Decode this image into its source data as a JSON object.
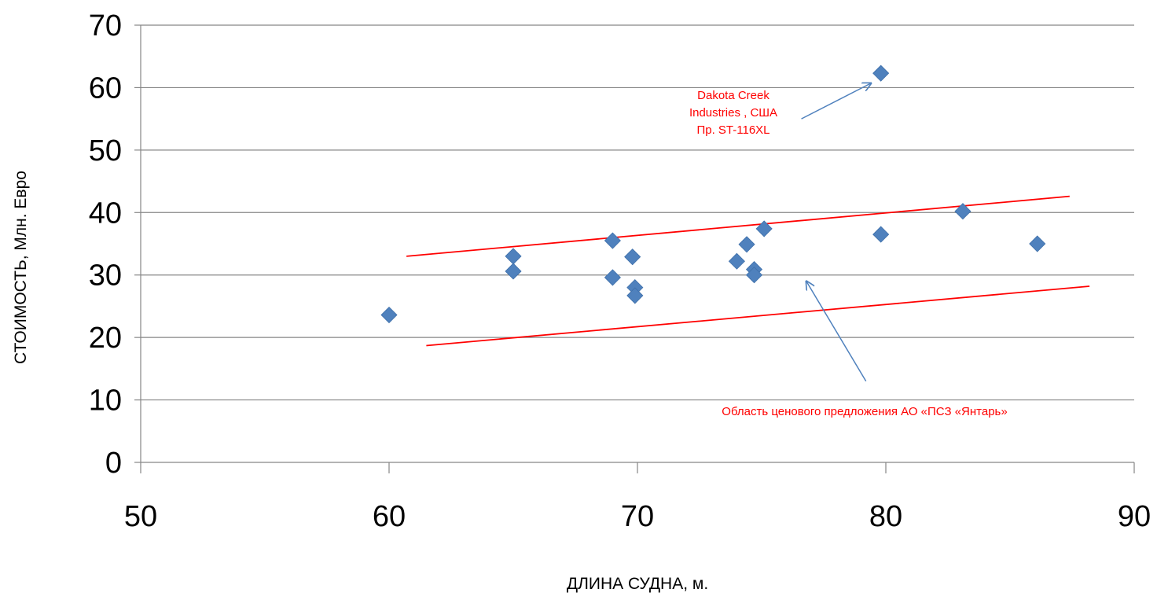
{
  "chart_data": {
    "type": "scatter",
    "title": "",
    "xlabel": "ДЛИНА СУДНА, м.",
    "ylabel": "СТОИМОСТЬ, Млн. Евро",
    "xlim": [
      50,
      90
    ],
    "ylim": [
      0,
      70
    ],
    "x_ticks": [
      50,
      60,
      70,
      80,
      90
    ],
    "y_ticks": [
      0,
      10,
      20,
      30,
      40,
      50,
      60,
      70
    ],
    "grid": "horizontal",
    "colors": {
      "marker": "#4F81BD",
      "band_line": "#FF0000",
      "annotation_text": "#FF0000",
      "arrow": "#4F81BD",
      "grid": "#868686",
      "axis": "#868686"
    },
    "points": [
      {
        "x": 60,
        "y": 23.6
      },
      {
        "x": 65,
        "y": 33.0
      },
      {
        "x": 65,
        "y": 30.6
      },
      {
        "x": 69,
        "y": 35.5
      },
      {
        "x": 69,
        "y": 29.6
      },
      {
        "x": 69.8,
        "y": 32.9
      },
      {
        "x": 69.9,
        "y": 28.0
      },
      {
        "x": 69.9,
        "y": 26.7
      },
      {
        "x": 74,
        "y": 32.2
      },
      {
        "x": 74.4,
        "y": 34.9
      },
      {
        "x": 74.7,
        "y": 30.9
      },
      {
        "x": 74.7,
        "y": 30.0
      },
      {
        "x": 75.1,
        "y": 37.4
      },
      {
        "x": 79.8,
        "y": 62.3
      },
      {
        "x": 79.8,
        "y": 36.5
      },
      {
        "x": 83.1,
        "y": 40.2
      },
      {
        "x": 86.1,
        "y": 35.0
      }
    ],
    "band_lines": [
      {
        "x1": 60.7,
        "y1": 33.0,
        "x2": 87.4,
        "y2": 42.6
      },
      {
        "x1": 61.5,
        "y1": 18.7,
        "x2": 88.2,
        "y2": 28.2
      }
    ],
    "annotations": [
      {
        "lines": [
          "Dakota Creek",
          "Industries , США",
          "Пр. ST-116XL"
        ],
        "arrow_from": {
          "x": 76.6,
          "y": 55.0
        },
        "arrow_to": {
          "x": 79.4,
          "y": 60.7
        }
      },
      {
        "lines": [
          "Область ценового предложения АО «ПСЗ «Янтарь»"
        ],
        "arrow_from": {
          "x": 79.2,
          "y": 13.0
        },
        "arrow_to": {
          "x": 76.8,
          "y": 29.0
        }
      }
    ]
  }
}
